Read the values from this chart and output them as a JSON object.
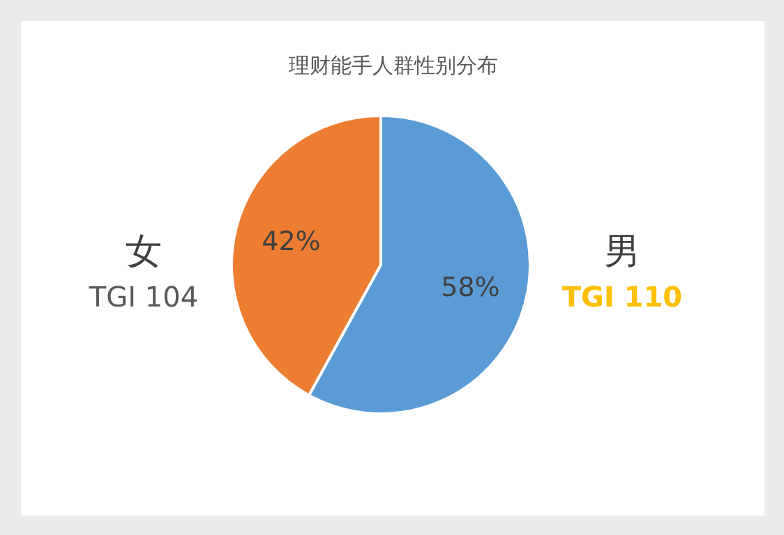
{
  "chart_data": {
    "type": "pie",
    "title": "理财能手人群性别分布",
    "categories": [
      "男",
      "女"
    ],
    "values": [
      58,
      42
    ],
    "colors": [
      "#5b9bd5",
      "#ed7d31"
    ],
    "value_labels": [
      "58%",
      "42%"
    ],
    "annotations": [
      "TGI 110",
      "TGI 104"
    ]
  }
}
